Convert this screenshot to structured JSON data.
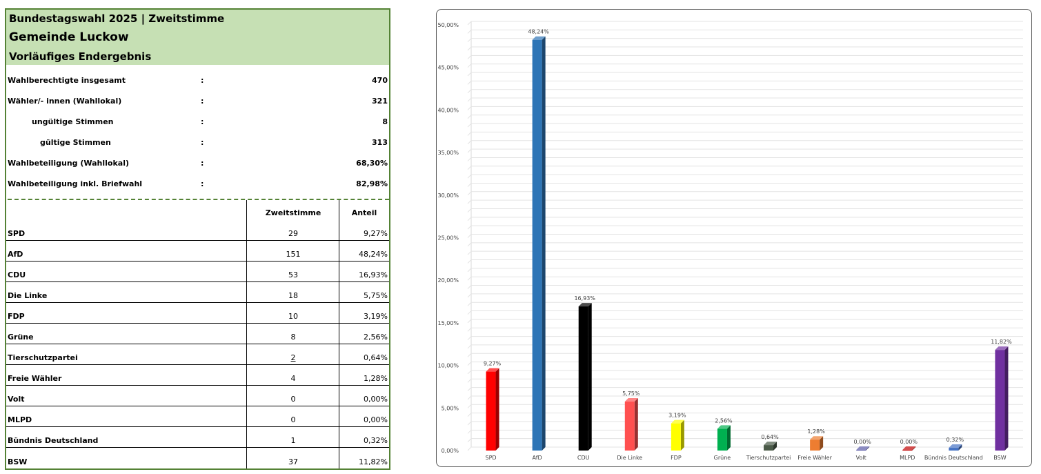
{
  "header": {
    "title": "Bundestagswahl 2025  | Zweitstimme",
    "municipality": "Gemeinde Luckow",
    "status": "Vorläufiges Endergebnis"
  },
  "stats": [
    {
      "label": "Wahlberechtigte insgesamt",
      "colon": ":",
      "value": "470"
    },
    {
      "label": "Wähler/- innen (Wahllokal)",
      "colon": ":",
      "value": "321"
    },
    {
      "label": "ungültige Stimmen",
      "colon": ":",
      "value": "8"
    },
    {
      "label": "gültige Stimmen",
      "colon": ":",
      "value": "313"
    },
    {
      "label": "Wahlbeteiligung (Wahllokal)",
      "colon": ":",
      "value": "68,30%"
    },
    {
      "label": "Wahlbeteiligung inkl. Briefwahl",
      "colon": ":",
      "value": "82,98%"
    }
  ],
  "table": {
    "headers": {
      "votes": "Zweitstimme",
      "share": "Anteil"
    },
    "rows": [
      {
        "party": "SPD",
        "votes": "29",
        "share": "9,27%"
      },
      {
        "party": "AfD",
        "votes": "151",
        "share": "48,24%"
      },
      {
        "party": "CDU",
        "votes": "53",
        "share": "16,93%"
      },
      {
        "party": "Die Linke",
        "votes": "18",
        "share": "5,75%"
      },
      {
        "party": "FDP",
        "votes": "10",
        "share": "3,19%"
      },
      {
        "party": "Grüne",
        "votes": "8",
        "share": "2,56%"
      },
      {
        "party": "Tierschutzpartei",
        "votes": "2",
        "share": "0,64%"
      },
      {
        "party": "Freie Wähler",
        "votes": "4",
        "share": "1,28%"
      },
      {
        "party": "Volt",
        "votes": "0",
        "share": "0,00%"
      },
      {
        "party": "MLPD",
        "votes": "0",
        "share": "0,00%"
      },
      {
        "party": "Bündnis Deutschland",
        "votes": "1",
        "share": "0,32%"
      },
      {
        "party": "BSW",
        "votes": "37",
        "share": "11,82%"
      }
    ]
  },
  "colors": {
    "header_bg": "#c6e0b4",
    "border_green": "#548235"
  },
  "chart_data": {
    "type": "bar",
    "categories": [
      "SPD",
      "AfD",
      "CDU",
      "Die Linke",
      "FDP",
      "Grüne",
      "Tierschutzpartei",
      "Freie Wähler",
      "Volt",
      "MLPD",
      "Bündnis Deutschland",
      "BSW"
    ],
    "values": [
      9.27,
      48.24,
      16.93,
      5.75,
      3.19,
      2.56,
      0.64,
      1.28,
      0.0,
      0.0,
      0.32,
      11.82
    ],
    "value_labels": [
      "9,27%",
      "48,24%",
      "16,93%",
      "5,75%",
      "3,19%",
      "2,56%",
      "0,64%",
      "1,28%",
      "0,00%",
      "0,00%",
      "0,32%",
      "11,82%"
    ],
    "colors": [
      "#ff0000",
      "#2e75b6",
      "#000000",
      "#ff5050",
      "#ffff00",
      "#00b050",
      "#4a5a48",
      "#ed7d31",
      "#5b5ba8",
      "#c00000",
      "#4472c4",
      "#7030a0"
    ],
    "ylim": [
      0,
      50
    ],
    "yticks": [
      "0,00%",
      "5,00%",
      "10,00%",
      "15,00%",
      "20,00%",
      "25,00%",
      "30,00%",
      "35,00%",
      "40,00%",
      "45,00%",
      "50,00%"
    ],
    "title": "",
    "xlabel": "",
    "ylabel": "",
    "grid": true,
    "legend": "none"
  }
}
